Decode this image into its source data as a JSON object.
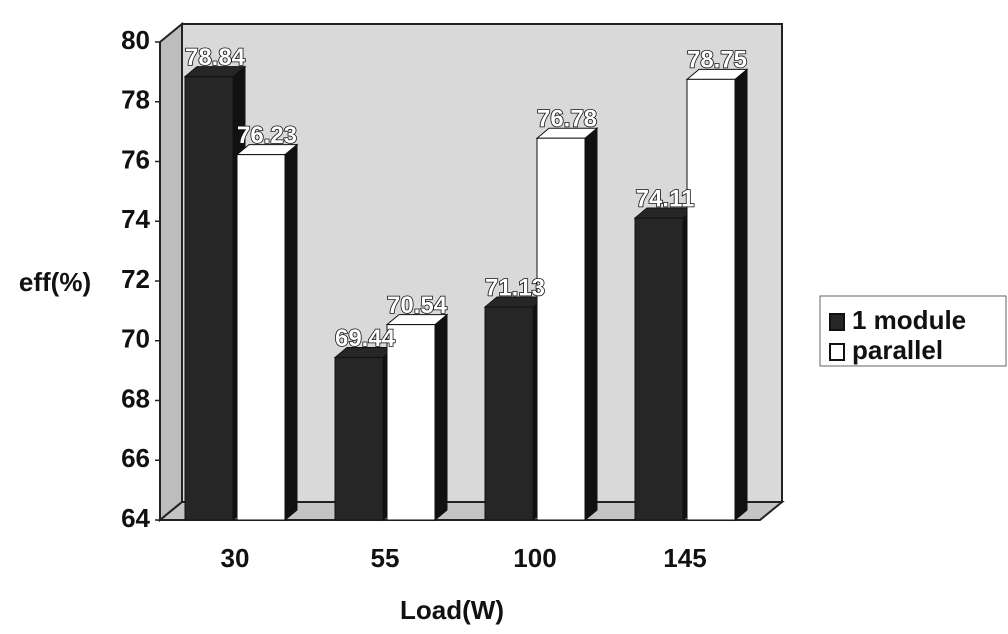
{
  "chart_data": {
    "type": "bar3d",
    "x_label": "Load(W)",
    "y_label": "eff(%)",
    "categories": [
      "30",
      "55",
      "100",
      "145"
    ],
    "series": [
      {
        "name": "1 module",
        "color": "#262626",
        "values": [
          78.84,
          69.44,
          71.13,
          74.11
        ]
      },
      {
        "name": "parallel",
        "color": "#ffffff",
        "values": [
          76.23,
          70.54,
          76.78,
          78.75
        ]
      }
    ],
    "ylim": [
      64,
      80
    ],
    "yticks": [
      64,
      66,
      68,
      70,
      72,
      74,
      76,
      78,
      80
    ],
    "grid": false,
    "legend": "right"
  }
}
